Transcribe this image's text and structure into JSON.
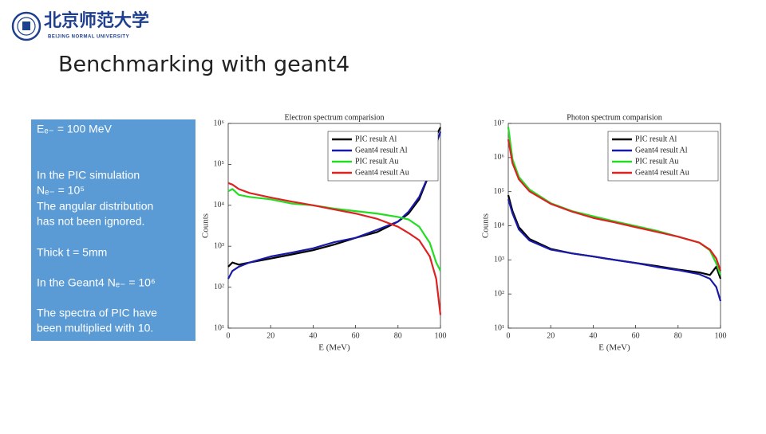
{
  "header": {
    "university_cn": "北京师范大学",
    "university_en": "BEIJING NORMAL UNIVERSITY"
  },
  "title": "Benchmarking with geant4",
  "textbox": {
    "lines": [
      "Eₑ₋ = 100 MeV",
      "In the PIC simulation",
      "Nₑ₋ = 10⁵",
      "The angular distribution",
      "has not been ignored.",
      "Thick t = 5mm",
      "In the Geant4  Nₑ₋ = 10⁶",
      "The spectra of PIC have",
      "been multiplied with 10."
    ]
  },
  "chart_data": [
    {
      "type": "line",
      "title": "Electron spectrum comparision",
      "x_label": "E (MeV)",
      "y_label": "Counts",
      "log_y": true,
      "legend": "upper right",
      "xlim": [
        0,
        100
      ],
      "xticks": [
        0,
        20,
        40,
        60,
        80,
        100
      ],
      "ylim": [
        10,
        1000000
      ],
      "yticks": [
        {
          "value": 10,
          "label": "10¹"
        },
        {
          "value": 100,
          "label": "10²"
        },
        {
          "value": 1000,
          "label": "10³"
        },
        {
          "value": 10000,
          "label": "10⁴"
        },
        {
          "value": 100000,
          "label": "10⁵"
        },
        {
          "value": 1000000,
          "label": "10⁶"
        }
      ],
      "x": [
        0,
        2,
        5,
        10,
        20,
        30,
        40,
        50,
        60,
        70,
        80,
        85,
        90,
        95,
        98,
        100
      ],
      "series": [
        {
          "name": "PIC result Al",
          "color": "#000000",
          "values": [
            316,
            400,
            355,
            400,
            500,
            630,
            800,
            1100,
            1600,
            2200,
            4000,
            6300,
            14000,
            63000,
            500000,
            800000
          ]
        },
        {
          "name": "Geant4 result Al",
          "color": "#1a1aa8",
          "values": [
            160,
            250,
            316,
            400,
            560,
            700,
            890,
            1260,
            1600,
            2500,
            4000,
            7000,
            16000,
            63000,
            316000,
            630000
          ]
        },
        {
          "name": "PIC result Au",
          "color": "#22dd22",
          "values": [
            22000,
            25000,
            18000,
            16000,
            14000,
            11000,
            10000,
            8300,
            7200,
            6300,
            5200,
            4500,
            3000,
            1200,
            400,
            250
          ]
        },
        {
          "name": "Geant4 result Au",
          "color": "#dd2222",
          "values": [
            35000,
            32000,
            25000,
            20000,
            15500,
            12300,
            10000,
            7900,
            6300,
            4700,
            3000,
            2100,
            1400,
            560,
            160,
            21
          ]
        }
      ]
    },
    {
      "type": "line",
      "title": "Photon spectrum comparision",
      "x_label": "E (MeV)",
      "y_label": "Counts",
      "log_y": true,
      "legend": "upper right",
      "xlim": [
        0,
        100
      ],
      "xticks": [
        0,
        20,
        40,
        60,
        80,
        100
      ],
      "ylim": [
        10,
        10000000
      ],
      "yticks": [
        {
          "value": 10,
          "label": "10¹"
        },
        {
          "value": 100,
          "label": "10²"
        },
        {
          "value": 1000,
          "label": "10³"
        },
        {
          "value": 10000,
          "label": "10⁴"
        },
        {
          "value": 100000,
          "label": "10⁵"
        },
        {
          "value": 1000000,
          "label": "10⁶"
        },
        {
          "value": 10000000,
          "label": "10⁷"
        }
      ],
      "x": [
        0,
        2,
        5,
        10,
        20,
        30,
        40,
        50,
        60,
        70,
        80,
        90,
        95,
        98,
        100
      ],
      "series": [
        {
          "name": "PIC result Al",
          "color": "#000000",
          "values": [
            79000,
            27000,
            9100,
            4100,
            2100,
            1550,
            1260,
            1000,
            810,
            660,
            520,
            430,
            360,
            630,
            280
          ]
        },
        {
          "name": "Geant4 result Al",
          "color": "#1a1aa8",
          "values": [
            60000,
            23000,
            7800,
            3700,
            2000,
            1550,
            1260,
            1000,
            810,
            620,
            500,
            380,
            280,
            160,
            62
          ]
        },
        {
          "name": "PIC result Au",
          "color": "#22dd22",
          "values": [
            7900000,
            890000,
            270000,
            115000,
            46000,
            27000,
            19000,
            13500,
            9800,
            7100,
            4800,
            3200,
            1900,
            790,
            360
          ]
        },
        {
          "name": "Geant4 result Au",
          "color": "#dd2222",
          "values": [
            3400000,
            680000,
            230000,
            102000,
            44000,
            26000,
            17000,
            12600,
            9100,
            6600,
            4800,
            3200,
            2000,
            1100,
            480
          ]
        }
      ]
    }
  ]
}
